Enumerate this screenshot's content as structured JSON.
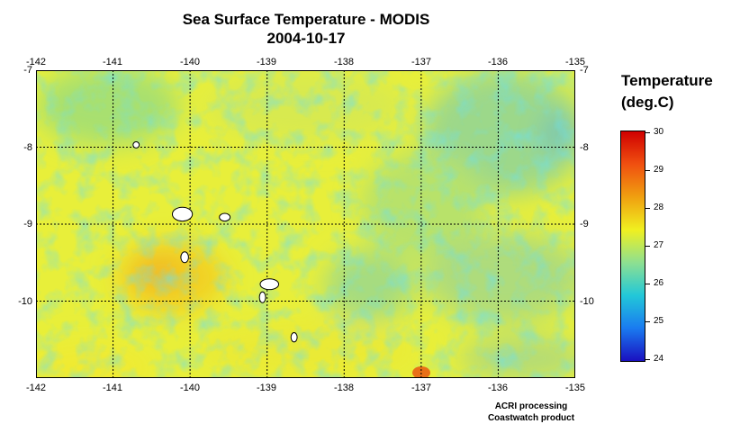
{
  "title": "Sea Surface Temperature - MODIS",
  "date": "2004-10-17",
  "lon_labels": [
    "-142",
    "-141",
    "-140",
    "-139",
    "-138",
    "-137",
    "-136",
    "-135"
  ],
  "lat_labels": [
    "-7",
    "-8",
    "-9",
    "-10"
  ],
  "map": {
    "lon_range": [
      -142,
      -135
    ],
    "lat_range": [
      -11,
      -7
    ],
    "gridlines": "dotted",
    "islands": [
      {
        "lon": -140.7,
        "lat": -7.97,
        "rx": 0.04,
        "ry": 0.04
      },
      {
        "lon": -140.1,
        "lat": -8.87,
        "rx": 0.13,
        "ry": 0.09
      },
      {
        "lon": -139.55,
        "lat": -8.91,
        "rx": 0.07,
        "ry": 0.05
      },
      {
        "lon": -140.07,
        "lat": -9.43,
        "rx": 0.05,
        "ry": 0.07
      },
      {
        "lon": -138.97,
        "lat": -9.78,
        "rx": 0.12,
        "ry": 0.07
      },
      {
        "lon": -139.06,
        "lat": -9.95,
        "rx": 0.04,
        "ry": 0.07
      },
      {
        "lon": -138.65,
        "lat": -10.47,
        "rx": 0.04,
        "ry": 0.06
      }
    ]
  },
  "legend": {
    "title_line1": "Temperature",
    "title_line2": "(deg.C)",
    "min": 24,
    "max": 30,
    "tick_labels": [
      "30",
      "29",
      "28",
      "27",
      "26",
      "25",
      "24"
    ],
    "colors": [
      "#1a10c0",
      "#1a7bf0",
      "#22c8d8",
      "#8ee090",
      "#f0f020",
      "#f0a010",
      "#f05010",
      "#d00000"
    ]
  },
  "credit_line1": "ACRI processing",
  "credit_line2": "Coastwatch product"
}
